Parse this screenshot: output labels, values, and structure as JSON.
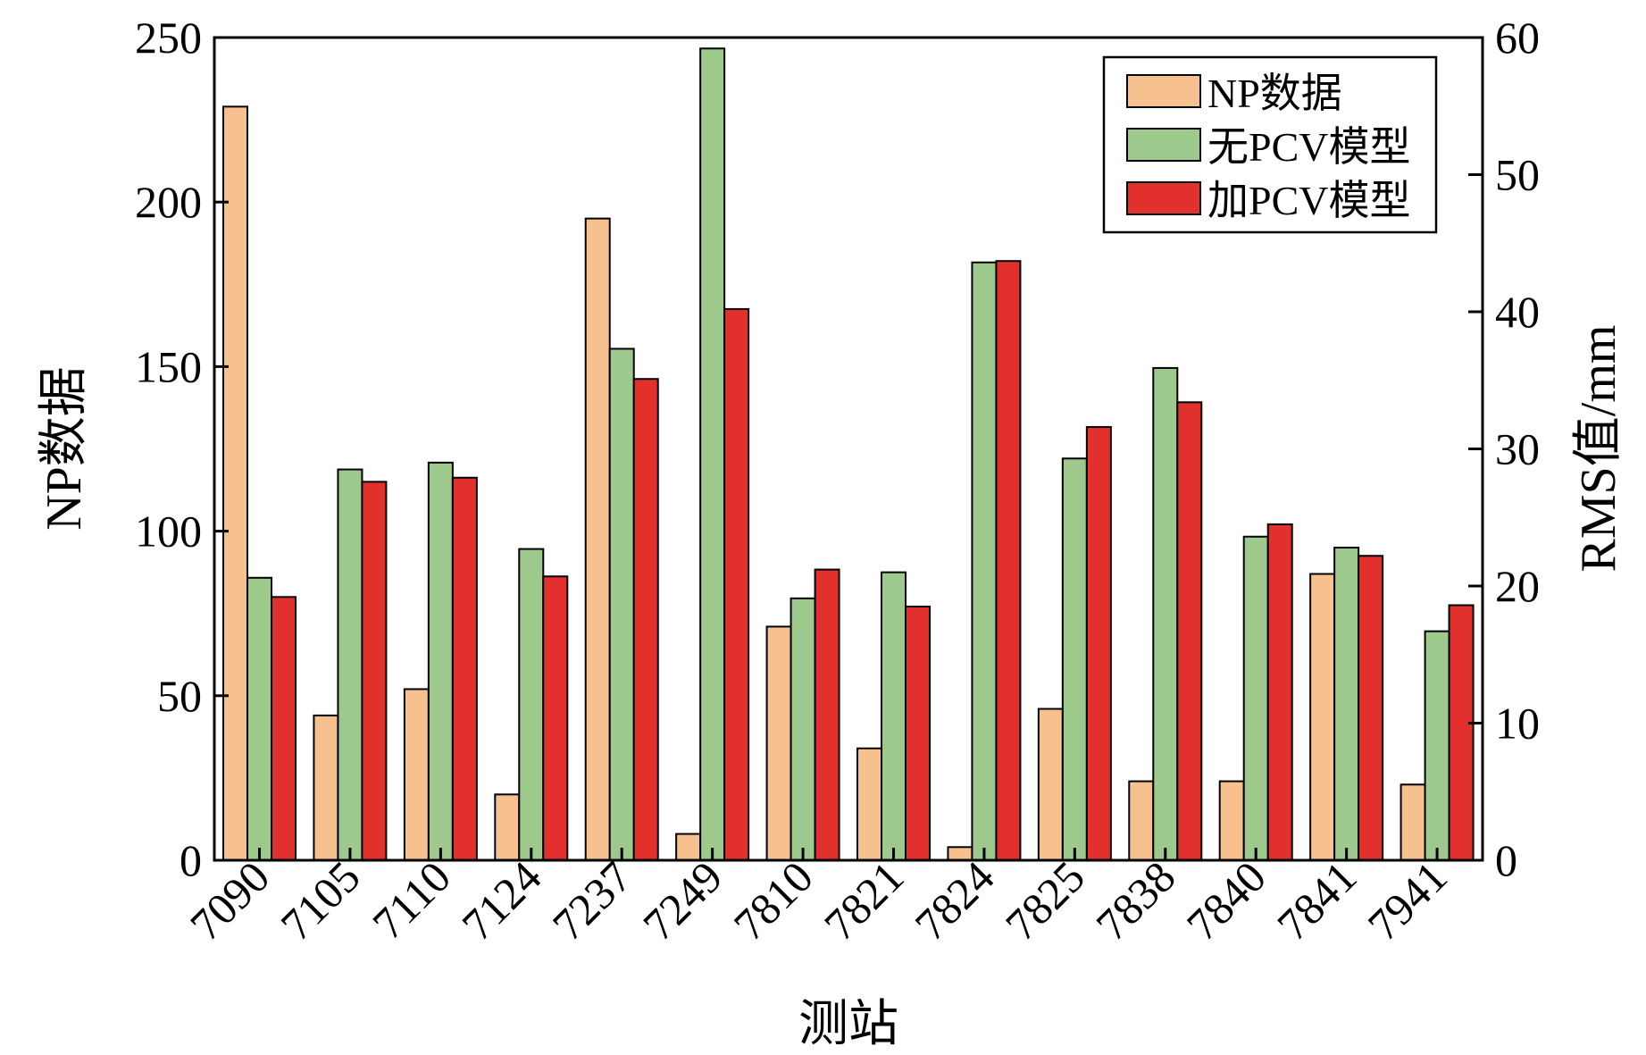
{
  "chart_data": {
    "type": "bar",
    "xlabel": "测站",
    "categories": [
      "7090",
      "7105",
      "7110",
      "7124",
      "7237",
      "7249",
      "7810",
      "7821",
      "7824",
      "7825",
      "7838",
      "7840",
      "7841",
      "7941"
    ],
    "y_left": {
      "label": "NP数据",
      "range": [
        0,
        250
      ],
      "ticks": [
        0,
        50,
        100,
        150,
        200,
        250
      ]
    },
    "y_right": {
      "label": "RMS值/mm",
      "range": [
        0,
        60
      ],
      "ticks": [
        0,
        10,
        20,
        30,
        40,
        50,
        60
      ]
    },
    "series": [
      {
        "name": "NP数据",
        "axis": "left",
        "color": "#f7c08f",
        "values": [
          229,
          44,
          52,
          20,
          195,
          8,
          71,
          34,
          4,
          46,
          24,
          24,
          87,
          23
        ]
      },
      {
        "name": "无PCV模型",
        "axis": "right",
        "color": "#9dca8c",
        "values": [
          20.6,
          28.5,
          29.0,
          22.7,
          37.3,
          59.2,
          19.1,
          21.0,
          43.6,
          29.3,
          35.9,
          23.6,
          22.8,
          16.7
        ]
      },
      {
        "name": "加PCV模型",
        "axis": "right",
        "color": "#e2312c",
        "values": [
          19.2,
          27.6,
          27.9,
          20.7,
          35.1,
          40.2,
          21.2,
          18.5,
          43.7,
          31.6,
          33.4,
          24.5,
          22.2,
          18.6
        ]
      }
    ],
    "legend_position": "top-right",
    "grid": false
  }
}
